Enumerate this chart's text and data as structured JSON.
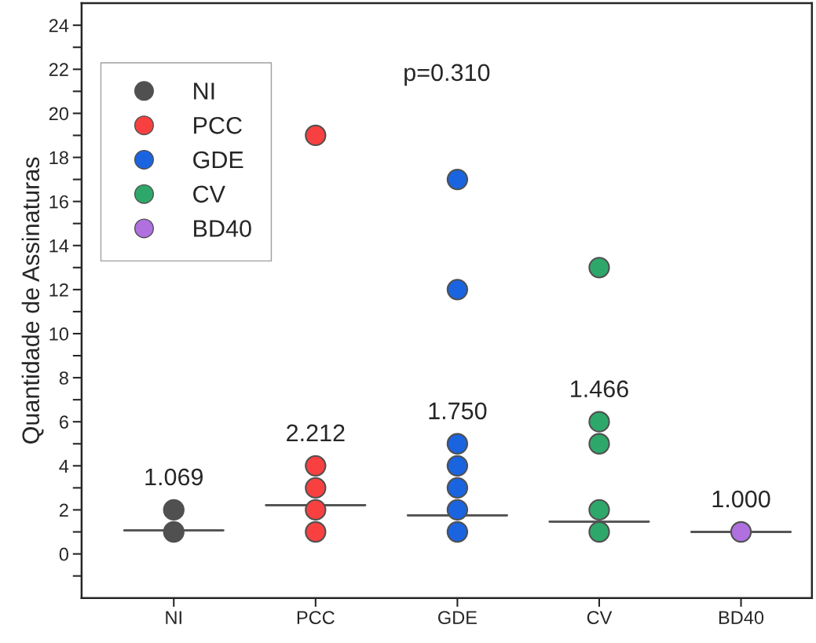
{
  "chart_data": {
    "type": "scatter",
    "ylabel": "Quantidade de Assinaturas",
    "categories": [
      "NI",
      "PCC",
      "GDE",
      "CV",
      "BD40"
    ],
    "series": [
      {
        "name": "NI",
        "color": "#505050",
        "x": [
          "NI",
          "NI"
        ],
        "values": [
          1,
          2
        ]
      },
      {
        "name": "PCC",
        "color": "#f84040",
        "x": [
          "PCC",
          "PCC",
          "PCC",
          "PCC",
          "PCC"
        ],
        "values": [
          1,
          2,
          3,
          4,
          19
        ]
      },
      {
        "name": "GDE",
        "color": "#1a64e0",
        "x": [
          "GDE",
          "GDE",
          "GDE",
          "GDE",
          "GDE",
          "GDE",
          "GDE"
        ],
        "values": [
          1,
          2,
          3,
          4,
          5,
          12,
          17
        ]
      },
      {
        "name": "CV",
        "color": "#2ea86a",
        "x": [
          "CV",
          "CV",
          "CV",
          "CV",
          "CV"
        ],
        "values": [
          1,
          2,
          5,
          6,
          13
        ]
      },
      {
        "name": "BD40",
        "color": "#b070e0",
        "x": [
          "BD40"
        ],
        "values": [
          1
        ]
      },
      {
        "type": "box",
        "color": "#555555",
        "boxes": [
          {
            "low": 1.069,
            "q1": 1.069,
            "median": 1.069,
            "q3": 1.069,
            "high": 1.069
          },
          {
            "low": 2.212,
            "q1": 2.212,
            "median": 2.212,
            "q3": 2.212,
            "high": 2.212
          },
          {
            "low": 1.75,
            "q1": 1.75,
            "median": 1.75,
            "q3": 1.75,
            "high": 1.75
          },
          {
            "low": 1.466,
            "q1": 1.466,
            "median": 1.466,
            "q3": 1.466,
            "high": 1.466
          },
          {
            "low": 1.0,
            "q1": 1.0,
            "median": 1.0,
            "q3": 1.0,
            "high": 1.0
          }
        ],
        "value_labels": [
          "1.069",
          "2.212",
          "1.750",
          "1.466",
          "1.000"
        ]
      }
    ],
    "annotations": [
      "p=0.310"
    ],
    "ylim": [
      -2,
      25
    ],
    "yticks": [
      {
        "value": -1,
        "label": null
      },
      0,
      {
        "value": 1,
        "label": null
      },
      2,
      {
        "value": 3,
        "label": null
      },
      4,
      {
        "value": 5,
        "label": null
      },
      6,
      {
        "value": 7,
        "label": null
      },
      8,
      {
        "value": 9,
        "label": null
      },
      10,
      {
        "value": 11,
        "label": null
      },
      12,
      {
        "value": 13,
        "label": null
      },
      14,
      {
        "value": 15,
        "label": null
      },
      16,
      {
        "value": 17,
        "label": null
      },
      18,
      {
        "value": 19,
        "label": null
      },
      20,
      {
        "value": 21,
        "label": null
      },
      22,
      {
        "value": 23,
        "label": null
      },
      24
    ],
    "marker": "circle",
    "grid": false,
    "legend": "top left"
  }
}
